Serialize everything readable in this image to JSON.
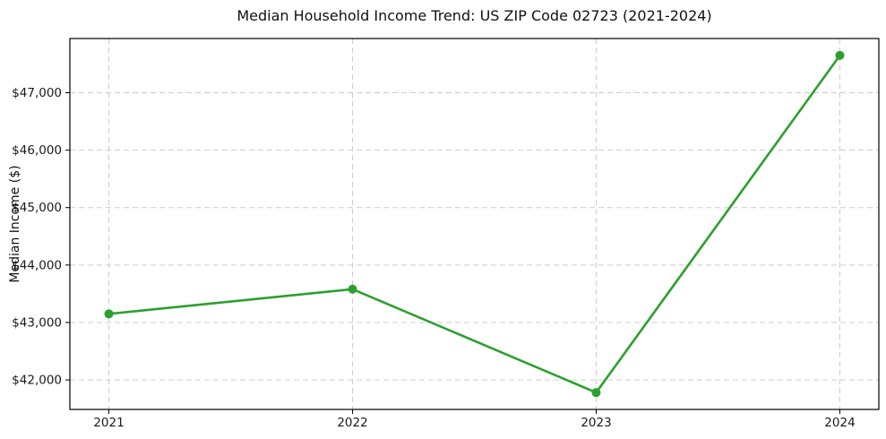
{
  "chart_data": {
    "type": "line",
    "title": "Median Household Income Trend: US ZIP Code 02723 (2021-2024)",
    "xlabel": "",
    "ylabel": "Median Income ($)",
    "x": [
      2021,
      2022,
      2023,
      2024
    ],
    "x_tick_labels": [
      "2021",
      "2022",
      "2023",
      "2024"
    ],
    "values": [
      43150,
      43580,
      41780,
      47650
    ],
    "y_ticks": [
      42000,
      43000,
      44000,
      45000,
      46000,
      47000
    ],
    "y_tick_labels": [
      "$42,000",
      "$43,000",
      "$44,000",
      "$45,000",
      "$46,000",
      "$47,000"
    ],
    "xlim": [
      2020.84,
      2024.16
    ],
    "ylim": [
      41486,
      47944
    ],
    "grid": true,
    "grid_style": "dashed",
    "grid_color": "#cccccc",
    "legend": "none",
    "line_color": "#2ca02c",
    "marker": "o",
    "marker_radius_px": 5
  }
}
